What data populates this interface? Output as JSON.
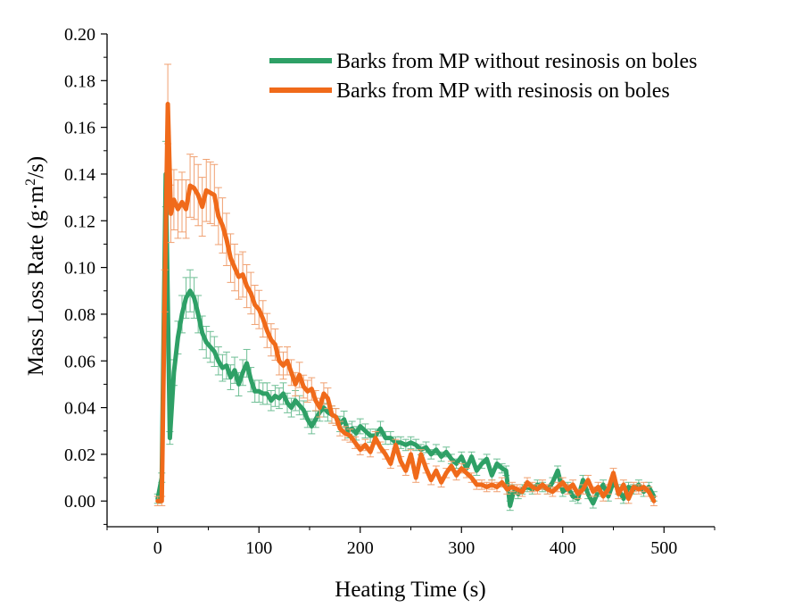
{
  "chart_data": {
    "type": "line",
    "xlabel": "Heating Time (s)",
    "ylabel_parts": [
      "Mass Loss Rate (g·m",
      "2",
      "/s)"
    ],
    "xlim": [
      -50,
      550
    ],
    "ylim": [
      -0.011,
      0.2
    ],
    "x_ticks": [
      0,
      100,
      200,
      300,
      400,
      500
    ],
    "x_tick_labels": [
      "0",
      "100",
      "200",
      "300",
      "400",
      "500"
    ],
    "y_ticks": [
      0.0,
      0.02,
      0.04,
      0.06,
      0.08,
      0.1,
      0.12,
      0.14,
      0.16,
      0.18,
      0.2
    ],
    "y_tick_labels": [
      "0.00",
      "0.02",
      "0.04",
      "0.06",
      "0.08",
      "0.10",
      "0.12",
      "0.14",
      "0.16",
      "0.18",
      "0.20"
    ],
    "grid": false,
    "legend_position": "top-right",
    "series": [
      {
        "name": "Barks from MP without resinosis on boles",
        "color": "#2ea066",
        "x": [
          0,
          4,
          8,
          12,
          16,
          20,
          24,
          28,
          32,
          36,
          40,
          44,
          48,
          52,
          56,
          60,
          64,
          68,
          72,
          76,
          80,
          84,
          88,
          92,
          96,
          100,
          104,
          108,
          112,
          116,
          120,
          124,
          128,
          132,
          136,
          140,
          144,
          148,
          152,
          156,
          160,
          164,
          168,
          172,
          176,
          180,
          184,
          188,
          192,
          196,
          200,
          205,
          210,
          215,
          220,
          225,
          230,
          235,
          240,
          245,
          250,
          255,
          260,
          265,
          270,
          275,
          280,
          285,
          290,
          295,
          300,
          305,
          310,
          315,
          320,
          325,
          330,
          335,
          340,
          344,
          348,
          352,
          356,
          360,
          365,
          370,
          375,
          380,
          385,
          390,
          395,
          400,
          405,
          410,
          415,
          420,
          425,
          430,
          435,
          440,
          445,
          450,
          455,
          460,
          465,
          470,
          475,
          480,
          485,
          490
        ],
        "y": [
          0.001,
          0.01,
          0.14,
          0.027,
          0.055,
          0.07,
          0.08,
          0.087,
          0.09,
          0.087,
          0.08,
          0.072,
          0.068,
          0.066,
          0.064,
          0.06,
          0.057,
          0.058,
          0.053,
          0.056,
          0.05,
          0.055,
          0.059,
          0.052,
          0.047,
          0.047,
          0.046,
          0.046,
          0.043,
          0.045,
          0.044,
          0.046,
          0.042,
          0.04,
          0.043,
          0.041,
          0.039,
          0.035,
          0.032,
          0.035,
          0.038,
          0.04,
          0.038,
          0.037,
          0.036,
          0.033,
          0.035,
          0.03,
          0.031,
          0.029,
          0.032,
          0.03,
          0.028,
          0.028,
          0.031,
          0.027,
          0.027,
          0.025,
          0.025,
          0.024,
          0.025,
          0.024,
          0.022,
          0.023,
          0.02,
          0.022,
          0.019,
          0.021,
          0.018,
          0.016,
          0.019,
          0.014,
          0.019,
          0.013,
          0.016,
          0.018,
          0.011,
          0.016,
          0.014,
          0.013,
          -0.002,
          0.005,
          0.003,
          0.005,
          0.006,
          0.005,
          0.007,
          0.006,
          0.005,
          0.008,
          0.013,
          0.004,
          0.006,
          0.002,
          0.001,
          0.009,
          0.003,
          -0.001,
          0.004,
          0.007,
          0.002,
          0.008,
          0.005,
          0.001,
          0.006,
          0.005,
          0.007,
          0.004,
          0.006,
          0.002
        ]
      },
      {
        "name": "Barks from MP with resinosis on boles",
        "color": "#f06a1a",
        "x": [
          0,
          4,
          7,
          10,
          13,
          16,
          20,
          24,
          28,
          32,
          36,
          40,
          44,
          48,
          52,
          56,
          60,
          64,
          68,
          72,
          76,
          80,
          84,
          88,
          92,
          96,
          100,
          104,
          108,
          112,
          116,
          120,
          124,
          128,
          132,
          136,
          140,
          144,
          148,
          152,
          156,
          160,
          164,
          168,
          172,
          176,
          180,
          185,
          190,
          195,
          200,
          205,
          210,
          215,
          220,
          225,
          230,
          235,
          240,
          245,
          250,
          255,
          260,
          265,
          270,
          275,
          280,
          285,
          290,
          295,
          300,
          305,
          310,
          315,
          320,
          325,
          330,
          335,
          340,
          345,
          350,
          355,
          360,
          365,
          370,
          375,
          380,
          385,
          390,
          395,
          400,
          405,
          410,
          415,
          420,
          425,
          430,
          435,
          440,
          445,
          450,
          455,
          460,
          465,
          470,
          475,
          480,
          485,
          490
        ],
        "y": [
          0.0,
          0.0,
          0.09,
          0.17,
          0.123,
          0.129,
          0.125,
          0.128,
          0.125,
          0.135,
          0.134,
          0.131,
          0.126,
          0.133,
          0.132,
          0.131,
          0.122,
          0.118,
          0.112,
          0.104,
          0.1,
          0.096,
          0.097,
          0.092,
          0.089,
          0.084,
          0.082,
          0.078,
          0.073,
          0.069,
          0.067,
          0.06,
          0.058,
          0.06,
          0.055,
          0.05,
          0.054,
          0.049,
          0.047,
          0.048,
          0.043,
          0.04,
          0.046,
          0.044,
          0.037,
          0.036,
          0.031,
          0.029,
          0.028,
          0.025,
          0.022,
          0.024,
          0.021,
          0.027,
          0.023,
          0.02,
          0.016,
          0.024,
          0.017,
          0.013,
          0.02,
          0.01,
          0.02,
          0.014,
          0.009,
          0.013,
          0.008,
          0.012,
          0.015,
          0.011,
          0.014,
          0.012,
          0.01,
          0.007,
          0.007,
          0.006,
          0.007,
          0.006,
          0.008,
          0.005,
          0.006,
          0.005,
          0.004,
          0.008,
          0.006,
          0.005,
          0.007,
          0.005,
          0.004,
          0.006,
          0.008,
          0.005,
          0.007,
          0.003,
          0.005,
          0.009,
          0.004,
          0.006,
          0.002,
          0.005,
          0.012,
          0.003,
          0.007,
          0.001,
          0.006,
          0.005,
          0.006,
          0.004,
          0.0
        ]
      }
    ]
  }
}
